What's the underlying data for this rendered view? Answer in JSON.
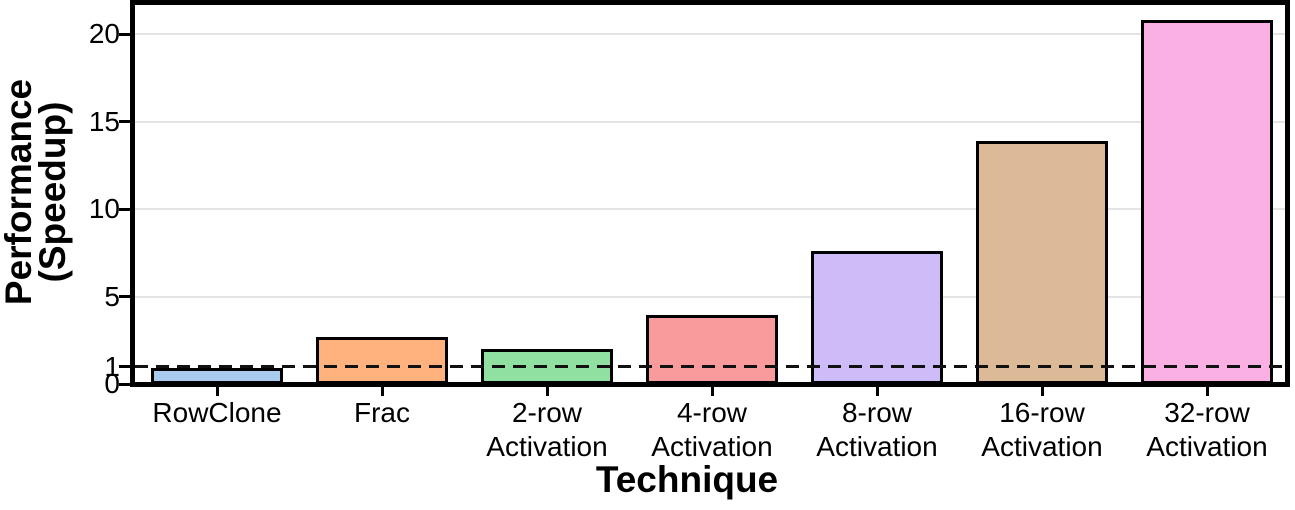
{
  "chart_data": {
    "type": "bar",
    "xlabel": "Technique",
    "ylabel": "Performance (Speedup)",
    "ylabel_lines": [
      "Performance",
      "(Speedup)"
    ],
    "categories": [
      "RowClone",
      "Frac",
      "2-row Activation",
      "4-row Activation",
      "8-row Activation",
      "16-row Activation",
      "32-row Activation"
    ],
    "category_label_lines": [
      [
        "RowClone"
      ],
      [
        "Frac"
      ],
      [
        "2-row",
        "Activation"
      ],
      [
        "4-row",
        "Activation"
      ],
      [
        "8-row",
        "Activation"
      ],
      [
        "16-row",
        "Activation"
      ],
      [
        "32-row",
        "Activation"
      ]
    ],
    "values": [
      0.9,
      2.7,
      2.0,
      3.95,
      7.6,
      13.9,
      20.8
    ],
    "bar_colors": [
      "#a9cbf0",
      "#ffb27e",
      "#90e0a2",
      "#f99b9c",
      "#cdbcf8",
      "#dcba98",
      "#fab0e2"
    ],
    "bar_edge_color": "#000000",
    "yticks": [
      0,
      1,
      5,
      10,
      15,
      20
    ],
    "ylim": [
      0,
      21.6
    ],
    "grid": "horizontal",
    "grid_values": [
      5,
      10,
      15,
      20
    ],
    "gridline_color": "#e4e4e4",
    "baseline": {
      "value": 1,
      "style": "dashed",
      "color": "#111111"
    },
    "legend": "none"
  }
}
